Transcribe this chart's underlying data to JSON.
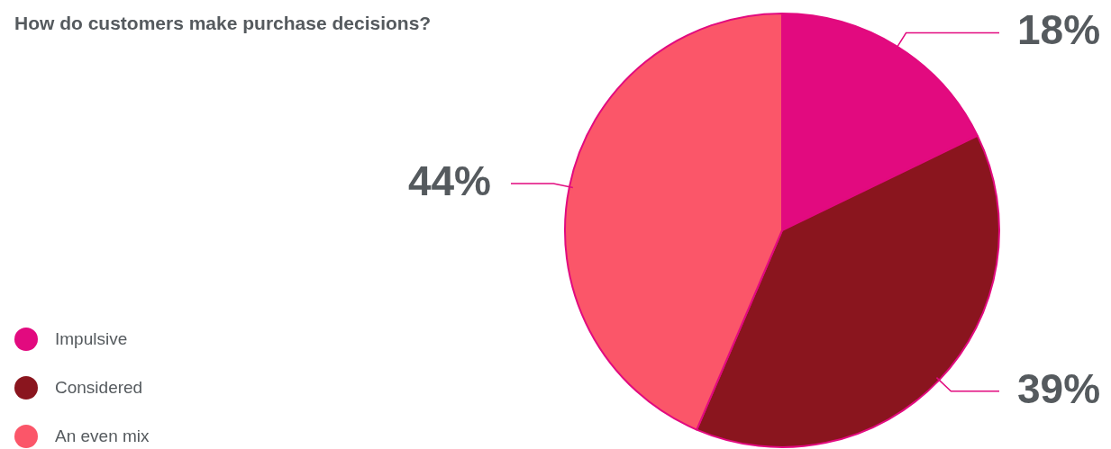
{
  "chart_data": {
    "type": "pie",
    "title": "How do customers make purchase decisions?",
    "categories": [
      "Impulsive",
      "Considered",
      "An even mix"
    ],
    "values": [
      18,
      39,
      44
    ],
    "colors": [
      "#e20a7f",
      "#8a151e",
      "#fb5669"
    ],
    "value_labels": [
      "18%",
      "39%",
      "44%"
    ],
    "legend": "bottom left"
  }
}
